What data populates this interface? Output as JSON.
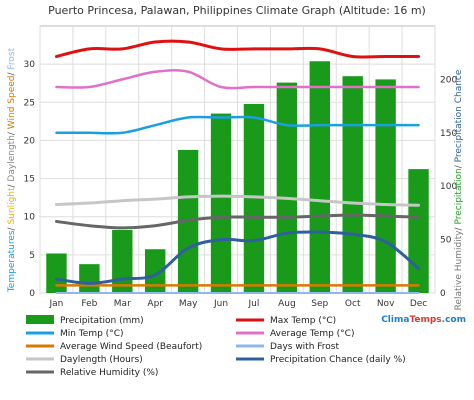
{
  "chart_data": {
    "type": "bar",
    "title": "Puerto Princesa, Palawan, Philippines Climate Graph (Altitude: 16 m)",
    "categories": [
      "Jan",
      "Feb",
      "Mar",
      "Apr",
      "May",
      "Jun",
      "Jul",
      "Aug",
      "Sep",
      "Oct",
      "Nov",
      "Dec"
    ],
    "left_axis": {
      "label_parts": [
        {
          "text": "Temperatures",
          "color": "#1a9ce0"
        },
        {
          "text": "/ ",
          "color": "#555555"
        },
        {
          "text": "Sunlight",
          "color": "#e8b400"
        },
        {
          "text": "/ ",
          "color": "#555555"
        },
        {
          "text": "Daylength",
          "color": "#888888"
        },
        {
          "text": "/ ",
          "color": "#555555"
        },
        {
          "text": "Wind Speed",
          "color": "#d77a00"
        },
        {
          "text": "/ ",
          "color": "#555555"
        },
        {
          "text": "Frost",
          "color": "#8fb8e8"
        }
      ],
      "ylim": [
        0,
        35
      ],
      "ticks": [
        "0",
        "5",
        "10",
        "15",
        "20",
        "25",
        "30"
      ]
    },
    "right_axis": {
      "label_parts": [
        {
          "text": "Relative Humidity",
          "color": "#777777"
        },
        {
          "text": "/ ",
          "color": "#555555"
        },
        {
          "text": "Precipitation",
          "color": "#22a022"
        },
        {
          "text": "/ ",
          "color": "#555555"
        },
        {
          "text": "Precipitation Chance",
          "color": "#2f5f9f"
        }
      ],
      "ylim": [
        0,
        250
      ],
      "ticks": [
        "0",
        "50",
        "100",
        "150",
        "200"
      ]
    },
    "series": [
      {
        "name": "Precipitation (mm)",
        "kind": "bar",
        "axis": "right",
        "color": "#1a9a1a",
        "values": [
          37,
          27,
          59,
          41,
          134,
          168,
          177,
          197,
          217,
          203,
          200,
          116
        ]
      },
      {
        "name": "Max Temp (°C)",
        "kind": "line",
        "axis": "left",
        "color": "#dd1111",
        "values": [
          31.0,
          32.0,
          32.0,
          32.9,
          32.9,
          32.0,
          32.0,
          32.0,
          32.0,
          31.0,
          31.0,
          31.0
        ]
      },
      {
        "name": "Min Temp (°C)",
        "kind": "line",
        "axis": "left",
        "color": "#1aa0de",
        "values": [
          21.0,
          21.0,
          21.0,
          22.0,
          23.0,
          23.0,
          23.0,
          22.0,
          22.0,
          22.0,
          22.0,
          22.0
        ]
      },
      {
        "name": "Average Temp (°C)",
        "kind": "line",
        "axis": "left",
        "color": "#e070c8",
        "values": [
          27.0,
          27.0,
          28.0,
          29.0,
          29.0,
          27.0,
          27.0,
          27.0,
          27.0,
          27.0,
          27.0,
          27.0
        ]
      },
      {
        "name": "Average Wind Speed (Beaufort)",
        "kind": "line",
        "axis": "left",
        "color": "#d77a00",
        "values": [
          1,
          1,
          1,
          1,
          1,
          1,
          1,
          1,
          1,
          1,
          1,
          1
        ]
      },
      {
        "name": "Days with Frost",
        "kind": "line",
        "axis": "left",
        "color": "#8fb8e8",
        "values": [
          0,
          0,
          0,
          0,
          0,
          0,
          0,
          0,
          0,
          0,
          0,
          0
        ]
      },
      {
        "name": "Daylength (Hours)",
        "kind": "line",
        "axis": "left",
        "color": "#c6c6c6",
        "values": [
          11.6,
          11.8,
          12.1,
          12.3,
          12.6,
          12.7,
          12.6,
          12.4,
          12.1,
          11.8,
          11.6,
          11.5
        ]
      },
      {
        "name": "Precipitation Chance (daily %)",
        "kind": "line",
        "axis": "right",
        "color": "#2f5f9f",
        "values": [
          13,
          9,
          13,
          17,
          42,
          50,
          49,
          56,
          57,
          55,
          48,
          23
        ]
      },
      {
        "name": "Relative Humidity (%)",
        "kind": "line",
        "axis": "right",
        "color": "#666666",
        "values": [
          67,
          63,
          61,
          63,
          68,
          71,
          71,
          71,
          72,
          73,
          72,
          71
        ]
      }
    ],
    "legend_placement": "bottom",
    "grid": true,
    "brand": {
      "part1": "Clima",
      "part2": "Temps",
      "part3": ".com"
    }
  }
}
